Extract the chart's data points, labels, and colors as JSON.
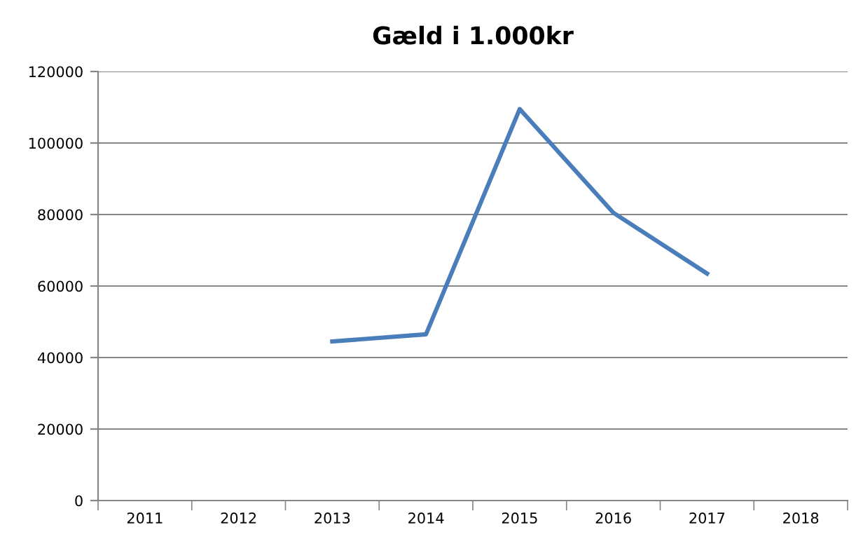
{
  "chart_data": {
    "type": "line",
    "title": "Gæld i 1.000kr",
    "categories": [
      "2011",
      "2012",
      "2013",
      "2014",
      "2015",
      "2016",
      "2017",
      "2018"
    ],
    "series": [
      {
        "color": "#4a7ebb",
        "values": [
          null,
          null,
          44500,
          46500,
          109500,
          80500,
          63500,
          null
        ]
      }
    ],
    "ylim": [
      0,
      120000
    ],
    "yticks": [
      0,
      20000,
      40000,
      60000,
      80000,
      100000,
      120000
    ],
    "grid": "y",
    "marker": "none",
    "line_style": "solid"
  }
}
